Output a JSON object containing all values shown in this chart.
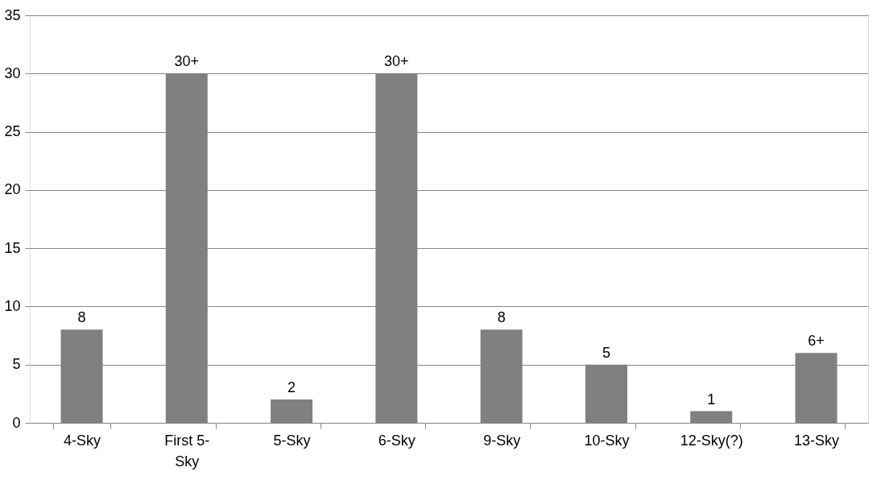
{
  "chart_data": {
    "type": "bar",
    "categories": [
      "4-Sky",
      "First 5-Sky",
      "5-Sky",
      "6-Sky",
      "9-Sky",
      "10-Sky",
      "12-Sky(?)",
      "13-Sky"
    ],
    "values": [
      8,
      30,
      2,
      30,
      8,
      5,
      1,
      6
    ],
    "value_labels": [
      "8",
      "30+",
      "2",
      "30+",
      "8",
      "5",
      "1",
      "6+"
    ],
    "color": "#808080",
    "ylim": [
      0,
      35
    ],
    "yticks": [
      0,
      5,
      10,
      15,
      20,
      25,
      30,
      35
    ],
    "grid": "y"
  }
}
